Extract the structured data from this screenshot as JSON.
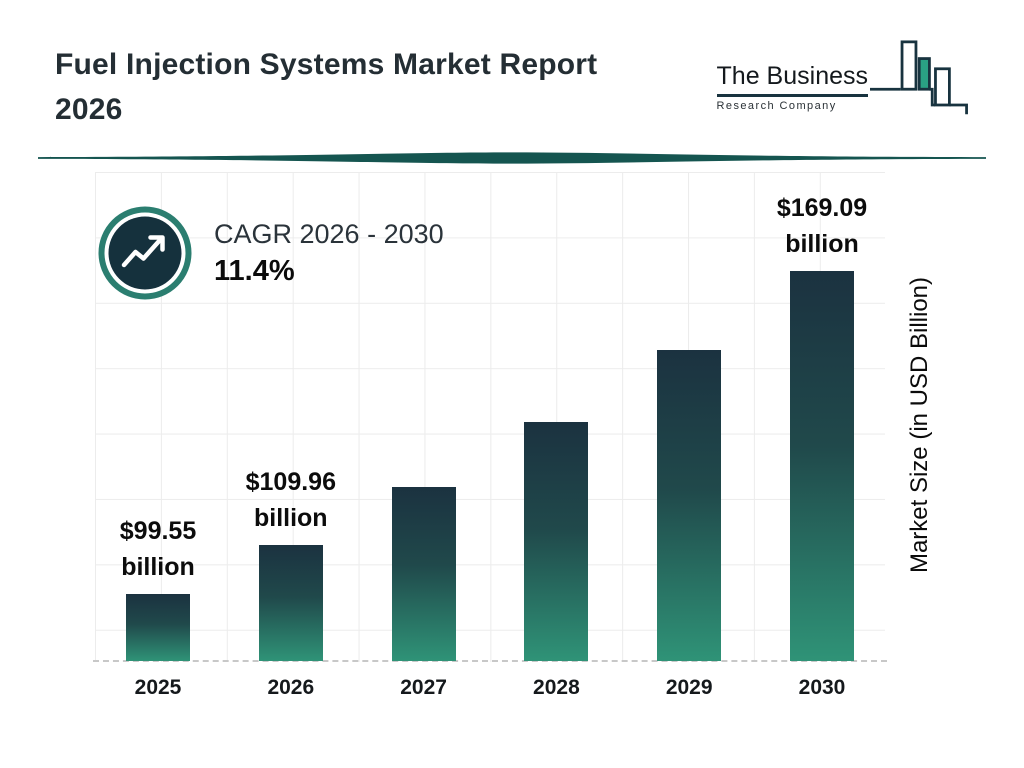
{
  "header": {
    "title_line1": "Fuel Injection Systems Market Report",
    "title_line2": "2026",
    "logo": {
      "name": "The Business",
      "subname": "Research Company"
    }
  },
  "cagr": {
    "label": "CAGR 2026 - 2030",
    "value": "11.4%"
  },
  "chart_data": {
    "type": "bar",
    "title": "Fuel Injection Systems Market Report 2026",
    "categories": [
      "2025",
      "2026",
      "2027",
      "2028",
      "2029",
      "2030"
    ],
    "values": [
      99.55,
      109.96,
      122.5,
      136.5,
      152.0,
      169.09
    ],
    "bar_labels": [
      {
        "amount": "$99.55",
        "unit": "billion"
      },
      {
        "amount": "$109.96",
        "unit": "billion"
      },
      null,
      null,
      null,
      {
        "amount": "$169.09",
        "unit": "billion"
      }
    ],
    "xlabel": "",
    "ylabel": "Market Size (in USD Billion)",
    "ylim": [
      85,
      172
    ],
    "grid": true,
    "legend": "none",
    "annotations": [
      "CAGR 2026 - 2030",
      "11.4%"
    ],
    "bar_colors": {
      "top": "#1b3240",
      "mid": "#20494b",
      "bottom": "#2f9377"
    }
  },
  "colors": {
    "divider_teal": "#155550",
    "ring_teal": "#2b7e70",
    "badge_navy": "#15313d",
    "logo_green": "#2aa184",
    "logo_outline": "#18333f",
    "grid_line": "#ececec",
    "title_text": "#242e34"
  }
}
